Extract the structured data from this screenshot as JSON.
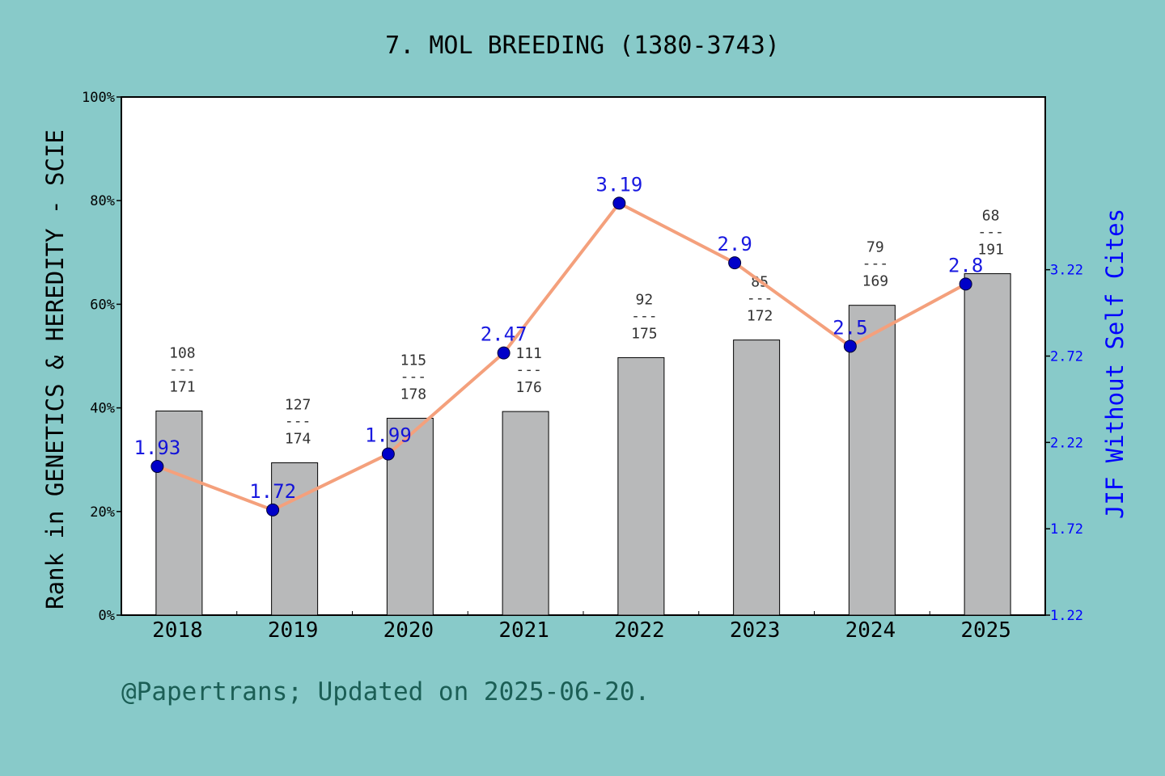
{
  "title": "7. MOL BREEDING (1380-3743)",
  "footer": "@Papertrans; Updated on 2025-06-20.",
  "colors": {
    "background": "#88cac9",
    "bar": "#b8b9ba",
    "line": "#f4a07c",
    "marker": "#0000c8",
    "jif_label": "#0000dd",
    "rank_label": "#333333",
    "footer": "#1b5e55",
    "right_axis": "#0000ff"
  },
  "chart_data": {
    "type": "bar+line",
    "categories": [
      "2018",
      "2019",
      "2020",
      "2021",
      "2022",
      "2023",
      "2024",
      "2025"
    ],
    "left_axis": {
      "label": "Rank in GENETICS & HEREDITY - SCIE",
      "ylim": [
        0,
        100
      ],
      "ticks": [
        "0%",
        "20%",
        "40%",
        "60%",
        "80%",
        "100%"
      ]
    },
    "right_axis": {
      "label": "JIF Without Self Cites",
      "ylim": [
        1.22,
        4.22
      ],
      "ticks": [
        "1.22",
        "1.72",
        "2.22",
        "2.72",
        "3.22"
      ],
      "tick_values": [
        1.22,
        1.72,
        2.22,
        2.72,
        3.22
      ]
    },
    "bars": {
      "values": [
        39.4,
        29.4,
        38.0,
        39.3,
        49.7,
        53.1,
        59.8,
        65.9
      ],
      "rank": [
        "108",
        "127",
        "115",
        "111",
        "92",
        "85",
        "79",
        "68"
      ],
      "total": [
        "171",
        "174",
        "178",
        "176",
        "175",
        "172",
        "169",
        "191"
      ],
      "separator": "---"
    },
    "line": {
      "values": [
        1.93,
        1.72,
        1.99,
        2.47,
        3.19,
        2.9,
        2.5,
        2.8
      ],
      "labels": [
        "1.93",
        "1.72",
        "1.99",
        "2.47",
        "3.19",
        "2.9",
        "2.5",
        "2.8"
      ],
      "plot_percent": [
        28.7,
        20.3,
        31.1,
        50.6,
        79.5,
        68.0,
        51.9,
        63.9
      ]
    },
    "grid": false
  }
}
